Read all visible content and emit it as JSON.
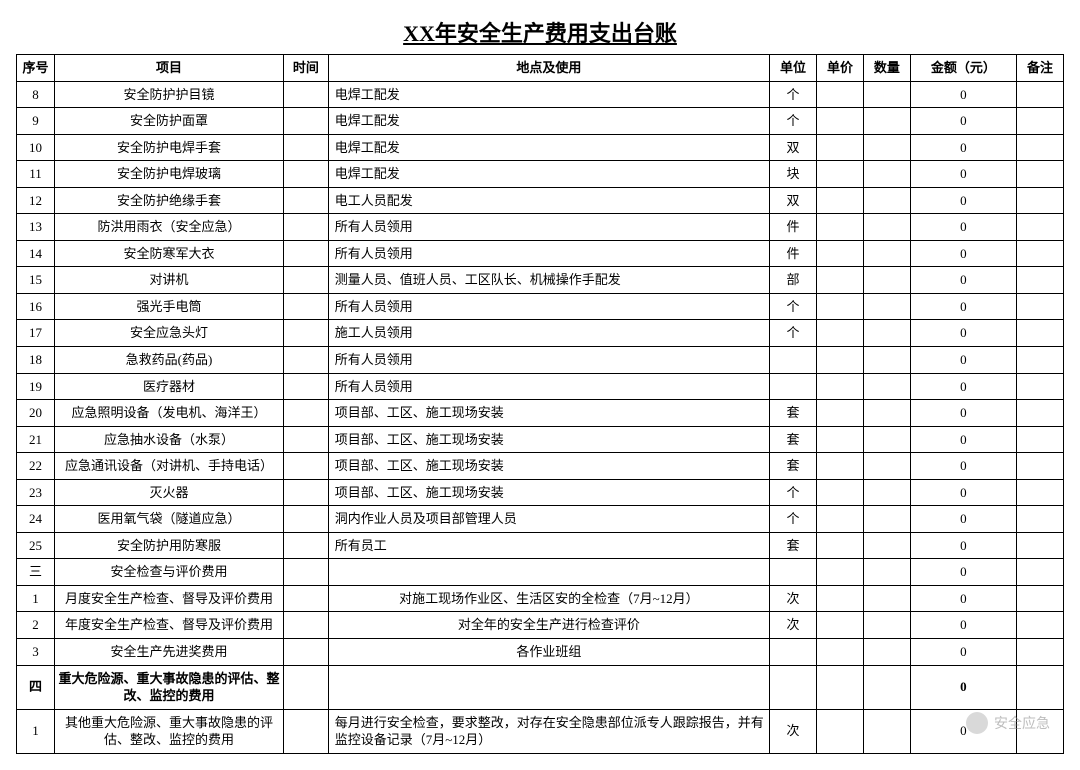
{
  "title": "XX年安全生产费用支出台账",
  "columns": [
    "序号",
    "项目",
    "时间",
    "地点及使用",
    "单位",
    "单价",
    "数量",
    "金额（元）",
    "备注"
  ],
  "rows": [
    {
      "seq": "8",
      "item": "安全防护护目镜",
      "time": "",
      "loc": "电焊工配发",
      "loc_align": "left",
      "unit": "个",
      "price": "",
      "qty": "",
      "amount": "0",
      "note": "",
      "bold": false
    },
    {
      "seq": "9",
      "item": "安全防护面罩",
      "time": "",
      "loc": "电焊工配发",
      "loc_align": "left",
      "unit": "个",
      "price": "",
      "qty": "",
      "amount": "0",
      "note": "",
      "bold": false
    },
    {
      "seq": "10",
      "item": "安全防护电焊手套",
      "time": "",
      "loc": "电焊工配发",
      "loc_align": "left",
      "unit": "双",
      "price": "",
      "qty": "",
      "amount": "0",
      "note": "",
      "bold": false
    },
    {
      "seq": "11",
      "item": "安全防护电焊玻璃",
      "time": "",
      "loc": "电焊工配发",
      "loc_align": "left",
      "unit": "块",
      "price": "",
      "qty": "",
      "amount": "0",
      "note": "",
      "bold": false
    },
    {
      "seq": "12",
      "item": "安全防护绝缘手套",
      "time": "",
      "loc": "电工人员配发",
      "loc_align": "left",
      "unit": "双",
      "price": "",
      "qty": "",
      "amount": "0",
      "note": "",
      "bold": false
    },
    {
      "seq": "13",
      "item": "防洪用雨衣（安全应急）",
      "time": "",
      "loc": "所有人员领用",
      "loc_align": "left",
      "unit": "件",
      "price": "",
      "qty": "",
      "amount": "0",
      "note": "",
      "bold": false
    },
    {
      "seq": "14",
      "item": "安全防寒军大衣",
      "time": "",
      "loc": "所有人员领用",
      "loc_align": "left",
      "unit": "件",
      "price": "",
      "qty": "",
      "amount": "0",
      "note": "",
      "bold": false
    },
    {
      "seq": "15",
      "item": "对讲机",
      "time": "",
      "loc": "测量人员、值班人员、工区队长、机械操作手配发",
      "loc_align": "left",
      "unit": "部",
      "price": "",
      "qty": "",
      "amount": "0",
      "note": "",
      "bold": false
    },
    {
      "seq": "16",
      "item": "强光手电筒",
      "time": "",
      "loc": "所有人员领用",
      "loc_align": "left",
      "unit": "个",
      "price": "",
      "qty": "",
      "amount": "0",
      "note": "",
      "bold": false
    },
    {
      "seq": "17",
      "item": "安全应急头灯",
      "time": "",
      "loc": "施工人员领用",
      "loc_align": "left",
      "unit": "个",
      "price": "",
      "qty": "",
      "amount": "0",
      "note": "",
      "bold": false
    },
    {
      "seq": "18",
      "item": "急救药品(药品)",
      "time": "",
      "loc": "所有人员领用",
      "loc_align": "left",
      "unit": "",
      "price": "",
      "qty": "",
      "amount": "0",
      "note": "",
      "bold": false
    },
    {
      "seq": "19",
      "item": "医疗器材",
      "time": "",
      "loc": "所有人员领用",
      "loc_align": "left",
      "unit": "",
      "price": "",
      "qty": "",
      "amount": "0",
      "note": "",
      "bold": false
    },
    {
      "seq": "20",
      "item": "应急照明设备（发电机、海洋王）",
      "time": "",
      "loc": "项目部、工区、施工现场安装",
      "loc_align": "left",
      "unit": "套",
      "price": "",
      "qty": "",
      "amount": "0",
      "note": "",
      "bold": false
    },
    {
      "seq": "21",
      "item": "应急抽水设备（水泵）",
      "time": "",
      "loc": "项目部、工区、施工现场安装",
      "loc_align": "left",
      "unit": "套",
      "price": "",
      "qty": "",
      "amount": "0",
      "note": "",
      "bold": false
    },
    {
      "seq": "22",
      "item": "应急通讯设备（对讲机、手持电话）",
      "time": "",
      "loc": "项目部、工区、施工现场安装",
      "loc_align": "left",
      "unit": "套",
      "price": "",
      "qty": "",
      "amount": "0",
      "note": "",
      "bold": false
    },
    {
      "seq": "23",
      "item": "灭火器",
      "time": "",
      "loc": "项目部、工区、施工现场安装",
      "loc_align": "left",
      "unit": "个",
      "price": "",
      "qty": "",
      "amount": "0",
      "note": "",
      "bold": false
    },
    {
      "seq": "24",
      "item": "医用氧气袋（隧道应急）",
      "time": "",
      "loc": "洞内作业人员及项目部管理人员",
      "loc_align": "left",
      "unit": "个",
      "price": "",
      "qty": "",
      "amount": "0",
      "note": "",
      "bold": false
    },
    {
      "seq": "25",
      "item": "安全防护用防寒服",
      "time": "",
      "loc": "所有员工",
      "loc_align": "left",
      "unit": "套",
      "price": "",
      "qty": "",
      "amount": "0",
      "note": "",
      "bold": false
    },
    {
      "seq": "三",
      "item": "安全检查与评价费用",
      "time": "",
      "loc": "",
      "loc_align": "left",
      "unit": "",
      "price": "",
      "qty": "",
      "amount": "0",
      "note": "",
      "bold": false
    },
    {
      "seq": "1",
      "item": "月度安全生产检查、督导及评价费用",
      "time": "",
      "loc": "对施工现场作业区、生活区安的全检查（7月~12月）",
      "loc_align": "center",
      "unit": "次",
      "price": "",
      "qty": "",
      "amount": "0",
      "note": "",
      "bold": false
    },
    {
      "seq": "2",
      "item": "年度安全生产检查、督导及评价费用",
      "time": "",
      "loc": "对全年的安全生产进行检查评价",
      "loc_align": "center",
      "unit": "次",
      "price": "",
      "qty": "",
      "amount": "0",
      "note": "",
      "bold": false
    },
    {
      "seq": "3",
      "item": "安全生产先进奖费用",
      "time": "",
      "loc": "各作业班组",
      "loc_align": "center",
      "unit": "",
      "price": "",
      "qty": "",
      "amount": "0",
      "note": "",
      "bold": false
    },
    {
      "seq": "四",
      "item": "重大危险源、重大事故隐患的评估、整改、监控的费用",
      "time": "",
      "loc": "",
      "loc_align": "left",
      "unit": "",
      "price": "",
      "qty": "",
      "amount": "0",
      "note": "",
      "bold": true
    },
    {
      "seq": "1",
      "item": "其他重大危险源、重大事故隐患的评估、整改、监控的费用",
      "time": "",
      "loc": "每月进行安全检查，要求整改，对存在安全隐患部位派专人跟踪报告，并有监控设备记录（7月~12月）",
      "loc_align": "left",
      "unit": "次",
      "price": "",
      "qty": "",
      "amount": "0",
      "note": "",
      "bold": false
    }
  ],
  "watermark": {
    "text": "安全应急"
  }
}
